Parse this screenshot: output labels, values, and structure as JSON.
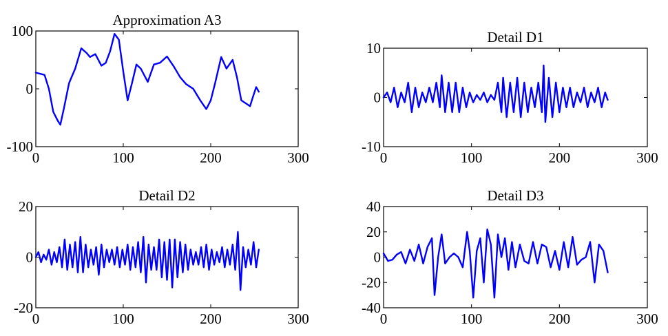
{
  "colors": {
    "line": "#0000ff",
    "axes": "#000000"
  },
  "chart_data": [
    {
      "type": "line",
      "title": "Approximation A3",
      "xlim": [
        0,
        300
      ],
      "ylim": [
        -100,
        100
      ],
      "xticks": [
        0,
        100,
        200,
        300
      ],
      "yticks": [
        -100,
        0,
        100
      ],
      "grid": false,
      "series": [
        {
          "x": [
            0,
            10,
            15,
            20,
            25,
            28,
            32,
            38,
            45,
            52,
            58,
            62,
            68,
            75,
            80,
            85,
            90,
            95,
            100,
            105,
            110,
            115,
            120,
            128,
            135,
            142,
            150,
            158,
            165,
            172,
            180,
            188,
            195,
            200,
            205,
            212,
            218,
            225,
            230,
            235,
            240,
            245,
            248,
            252,
            255
          ],
          "y": [
            28,
            24,
            0,
            -40,
            -55,
            -62,
            -35,
            10,
            35,
            70,
            62,
            55,
            60,
            40,
            45,
            65,
            95,
            85,
            30,
            -20,
            10,
            42,
            35,
            12,
            42,
            45,
            56,
            38,
            20,
            8,
            0,
            -20,
            -35,
            -20,
            10,
            55,
            35,
            50,
            20,
            -20,
            -25,
            -30,
            -15,
            3,
            -5
          ]
        }
      ]
    },
    {
      "type": "line",
      "title": "Detail D1",
      "xlim": [
        0,
        300
      ],
      "ylim": [
        -10,
        10
      ],
      "xticks": [
        0,
        100,
        200,
        300
      ],
      "yticks": [
        -10,
        0,
        10
      ],
      "grid": false,
      "series": [
        {
          "x": [
            0,
            4,
            8,
            12,
            16,
            20,
            24,
            28,
            32,
            36,
            40,
            44,
            48,
            52,
            56,
            60,
            64,
            66,
            70,
            74,
            78,
            82,
            86,
            90,
            94,
            98,
            102,
            106,
            110,
            114,
            118,
            122,
            126,
            130,
            134,
            136,
            140,
            144,
            148,
            152,
            156,
            160,
            164,
            168,
            172,
            176,
            180,
            182,
            184,
            188,
            192,
            196,
            200,
            204,
            208,
            212,
            216,
            220,
            224,
            228,
            232,
            236,
            240,
            244,
            248,
            252,
            255
          ],
          "y": [
            0,
            1,
            -1,
            2,
            -2,
            1,
            -1,
            3,
            -3,
            2,
            -2,
            1,
            -1,
            2,
            -1,
            3,
            -2,
            4.5,
            -3,
            3,
            -3,
            3,
            -3,
            2,
            -2,
            1,
            -1,
            0.5,
            -0.5,
            1,
            -1,
            0.5,
            -0.5,
            3,
            -3,
            4,
            -4,
            3,
            -3,
            4,
            -4,
            3,
            -3,
            2,
            -2,
            3,
            -3,
            6.5,
            -5,
            4,
            -4,
            3,
            -3,
            2,
            -2,
            2,
            -2,
            1,
            -1,
            2,
            -2,
            1,
            -1,
            2,
            -2,
            1,
            -0.5
          ]
        }
      ]
    },
    {
      "type": "line",
      "title": "Detail D2",
      "xlim": [
        0,
        300
      ],
      "ylim": [
        -20,
        20
      ],
      "xticks": [
        0,
        100,
        200,
        300
      ],
      "yticks": [
        -20,
        0,
        20
      ],
      "grid": false,
      "series": [
        {
          "x": [
            0,
            3,
            6,
            9,
            12,
            15,
            18,
            21,
            24,
            27,
            30,
            33,
            36,
            39,
            42,
            45,
            48,
            51,
            54,
            57,
            60,
            63,
            66,
            69,
            72,
            75,
            78,
            81,
            84,
            87,
            90,
            93,
            96,
            99,
            102,
            105,
            108,
            111,
            114,
            117,
            120,
            123,
            126,
            129,
            132,
            135,
            138,
            141,
            144,
            147,
            150,
            153,
            156,
            159,
            162,
            165,
            168,
            171,
            174,
            177,
            180,
            183,
            186,
            189,
            192,
            195,
            198,
            201,
            204,
            207,
            210,
            213,
            216,
            219,
            222,
            225,
            228,
            231,
            234,
            237,
            240,
            243,
            246,
            249,
            252,
            255
          ],
          "y": [
            0,
            2,
            -2,
            1,
            -1,
            3,
            -3,
            2,
            -2,
            4,
            -4,
            7,
            -5,
            5,
            -4,
            6,
            -6,
            8,
            -6,
            5,
            -4,
            3,
            -3,
            4,
            -7,
            5,
            -4,
            3,
            -2,
            3,
            -3,
            4,
            -4,
            3,
            -3,
            5,
            -5,
            4,
            -4,
            6,
            -6,
            8,
            -10,
            5,
            -5,
            4,
            -5,
            7,
            -8,
            6,
            -9,
            7,
            -12,
            7,
            -8,
            6,
            -6,
            5,
            -5,
            3,
            -3,
            2,
            -3,
            4,
            -4,
            5,
            -5,
            3,
            -3,
            2,
            -2,
            4,
            -4,
            3,
            -3,
            5,
            -5,
            10,
            -13,
            4,
            -4,
            3,
            -3,
            6,
            -4,
            3
          ]
        }
      ]
    },
    {
      "type": "line",
      "title": "Detail D3",
      "xlim": [
        0,
        300
      ],
      "ylim": [
        -40,
        40
      ],
      "xticks": [
        0,
        100,
        200,
        300
      ],
      "yticks": [
        -40,
        -20,
        0,
        20,
        40
      ],
      "grid": false,
      "series": [
        {
          "x": [
            0,
            5,
            10,
            15,
            20,
            25,
            30,
            35,
            40,
            45,
            50,
            55,
            58,
            62,
            66,
            70,
            75,
            80,
            85,
            90,
            95,
            98,
            102,
            106,
            110,
            114,
            118,
            122,
            126,
            130,
            134,
            138,
            142,
            146,
            150,
            155,
            160,
            165,
            170,
            175,
            180,
            185,
            190,
            195,
            200,
            205,
            210,
            215,
            220,
            225,
            230,
            235,
            240,
            245,
            250,
            255
          ],
          "y": [
            3,
            -3,
            -2,
            2,
            4,
            -5,
            6,
            -3,
            10,
            -5,
            8,
            15,
            -30,
            0,
            18,
            -5,
            0,
            3,
            0,
            -8,
            20,
            5,
            -32,
            5,
            15,
            -20,
            22,
            10,
            -32,
            18,
            0,
            15,
            -10,
            12,
            -8,
            10,
            -3,
            -5,
            12,
            -5,
            10,
            8,
            -8,
            5,
            -10,
            12,
            -8,
            16,
            -6,
            -2,
            0,
            12,
            -20,
            10,
            5,
            -12
          ]
        }
      ]
    }
  ]
}
